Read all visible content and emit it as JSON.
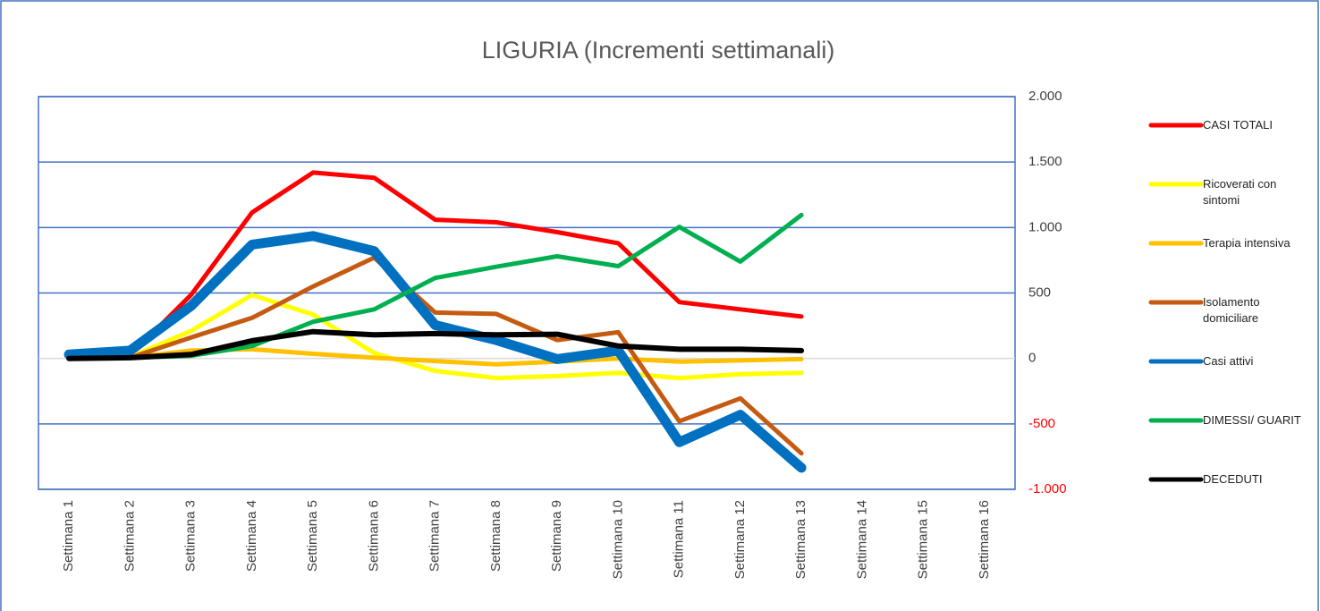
{
  "chart_data": {
    "type": "line",
    "title": "LIGURIA (Incrementi settimanali)",
    "categories": [
      "Settimana 1",
      "Settimana 2",
      "Settimana 3",
      "Settimana 4",
      "Settimana 5",
      "Settimana 6",
      "Settimana 7",
      "Settimana 8",
      "Settimana 9",
      "Settimana 10",
      "Settimana 11",
      "Settimana 12",
      "Settimana 13",
      "Settimana 14",
      "Settimana 15",
      "Settimana 16"
    ],
    "series": [
      {
        "name": "CASI TOTALI",
        "color": "#ff0000",
        "line_width": 5,
        "values": [
          5,
          20,
          485,
          1115,
          1420,
          1380,
          1060,
          1040,
          965,
          880,
          430,
          375,
          320,
          null,
          null,
          null
        ]
      },
      {
        "name": "Ricoverati con sintomi",
        "color": "#ffff00",
        "line_width": 5,
        "values": [
          0,
          10,
          210,
          485,
          335,
          40,
          -95,
          -150,
          -135,
          -110,
          -150,
          -120,
          -110,
          null,
          null,
          null
        ]
      },
      {
        "name": "Terapia intensiva",
        "color": "#ffc000",
        "line_width": 5,
        "values": [
          0,
          5,
          60,
          70,
          35,
          5,
          -20,
          -45,
          -25,
          0,
          -25,
          -15,
          -5,
          null,
          null,
          null
        ]
      },
      {
        "name": "Isolamento domiciliare",
        "color": "#c55a11",
        "line_width": 5,
        "values": [
          0,
          5,
          160,
          310,
          550,
          770,
          350,
          340,
          140,
          200,
          -480,
          -305,
          -725,
          null,
          null,
          null
        ]
      },
      {
        "name": "Casi attivi",
        "color": "#0070c0",
        "line_width": 11,
        "values": [
          30,
          60,
          400,
          870,
          935,
          820,
          255,
          140,
          -5,
          60,
          -640,
          -430,
          -835,
          null,
          null,
          null
        ]
      },
      {
        "name": "DIMESSI/ GUARIT",
        "color": "#00b050",
        "line_width": 5,
        "values": [
          0,
          5,
          20,
          95,
          280,
          375,
          615,
          700,
          780,
          705,
          1005,
          740,
          1095,
          null,
          null,
          null
        ]
      },
      {
        "name": "DECEDUTI",
        "color": "#000000",
        "line_width": 6,
        "values": [
          0,
          5,
          30,
          135,
          205,
          180,
          190,
          180,
          185,
          95,
          70,
          70,
          60,
          null,
          null,
          null
        ]
      }
    ],
    "ylim": [
      -1000,
      2000
    ],
    "yticks": [
      {
        "value": 2000,
        "label": "2.000"
      },
      {
        "value": 1500,
        "label": "1.500"
      },
      {
        "value": 1000,
        "label": "1.000"
      },
      500,
      0,
      -500,
      {
        "value": -1000,
        "label": "-1.000"
      }
    ],
    "y_axis_side": "right",
    "grid": true,
    "grid_color": "#4472c4",
    "negative_tick_color": "#ff0000",
    "legend": "right"
  }
}
